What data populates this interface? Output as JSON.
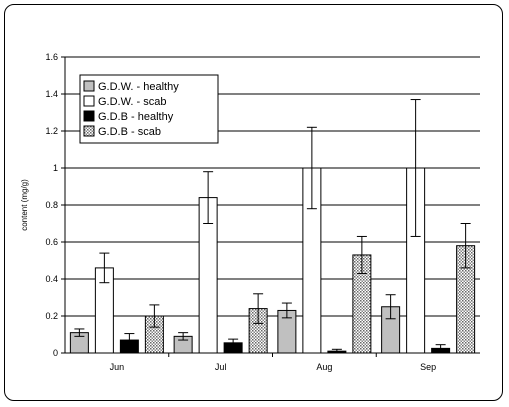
{
  "chart_data": {
    "type": "bar",
    "title": "",
    "xlabel": "",
    "ylabel": "content (mg/g)",
    "ylim": [
      0,
      1.6
    ],
    "yticks": [
      "0",
      "0.2",
      "0.4",
      "0.6",
      "0.8",
      "1",
      "1.2",
      "1.4",
      "1.6"
    ],
    "grid": true,
    "legend_position": "top-left",
    "categories": [
      "Jun",
      "Jul",
      "Aug",
      "Sep"
    ],
    "series": [
      {
        "name": "G.D.W. - healthy",
        "color": "#c0c0c0",
        "pattern": "solid",
        "values": [
          0.11,
          0.09,
          0.23,
          0.25
        ],
        "errors": [
          0.02,
          0.02,
          0.04,
          0.065
        ]
      },
      {
        "name": "G.D.W. - scab",
        "color": "#ffffff",
        "pattern": "solid",
        "values": [
          0.46,
          0.84,
          1.0,
          1.0
        ],
        "errors": [
          0.08,
          0.14,
          0.22,
          0.37
        ]
      },
      {
        "name": "G.D.B - healthy",
        "color": "#000000",
        "pattern": "solid",
        "values": [
          0.07,
          0.055,
          0.01,
          0.025
        ],
        "errors": [
          0.035,
          0.02,
          0.01,
          0.02
        ]
      },
      {
        "name": "G.D.B - scab",
        "color": "#999999",
        "pattern": "dotted",
        "values": [
          0.2,
          0.24,
          0.53,
          0.58
        ],
        "errors": [
          0.06,
          0.08,
          0.1,
          0.12
        ]
      }
    ]
  }
}
